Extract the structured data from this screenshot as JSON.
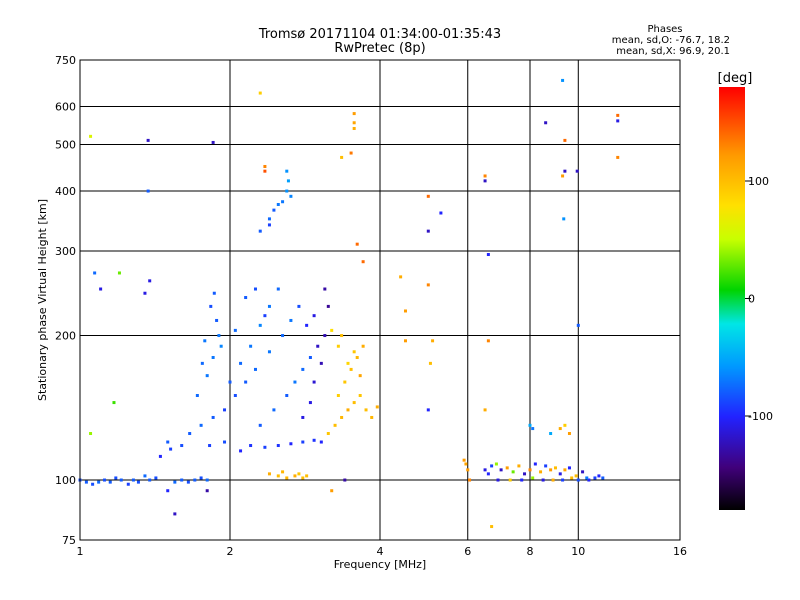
{
  "chart_data": {
    "type": "scatter",
    "title": "Tromsø 20171104 01:34:00-01:35:43",
    "subtitle": "RwPretec (8p)",
    "xlabel": "Frequency [MHz]",
    "ylabel": "Stationary phase Virtual Height [km]",
    "x_scale": "log",
    "y_scale": "log",
    "xlim": [
      1,
      16
    ],
    "ylim": [
      75,
      750
    ],
    "x_ticks": [
      1,
      2,
      4,
      6,
      8,
      10,
      16
    ],
    "y_ticks": [
      75,
      100,
      200,
      300,
      400,
      500,
      600,
      750
    ],
    "grid": true,
    "legend": {
      "title": "Phases",
      "lines": [
        "mean, sd,O: -76.7, 18.2",
        "mean, sd,X:  96.9, 20.1"
      ]
    },
    "colorbar": {
      "label": "[deg]",
      "ticks": [
        100,
        0,
        -100
      ],
      "range": [
        -180,
        180
      ],
      "colors": [
        "#000000",
        "#40007a",
        "#2222ff",
        "#0099ff",
        "#00e6e6",
        "#00d400",
        "#c8ff00",
        "#ffe000",
        "#ff9900",
        "#ff0000"
      ]
    },
    "points": [
      [
        1.0,
        100,
        -85
      ],
      [
        1.03,
        99,
        -80
      ],
      [
        1.06,
        98,
        -85
      ],
      [
        1.09,
        99,
        -75
      ],
      [
        1.12,
        100,
        -85
      ],
      [
        1.15,
        99,
        -80
      ],
      [
        1.18,
        101,
        -85
      ],
      [
        1.21,
        100,
        -80
      ],
      [
        1.25,
        98,
        -90
      ],
      [
        1.28,
        100,
        -80
      ],
      [
        1.31,
        99,
        -85
      ],
      [
        1.35,
        102,
        -75
      ],
      [
        1.38,
        100,
        -80
      ],
      [
        1.42,
        101,
        -85
      ],
      [
        1.55,
        99,
        -75
      ],
      [
        1.6,
        100,
        -80
      ],
      [
        1.65,
        99,
        -85
      ],
      [
        1.7,
        100,
        -80
      ],
      [
        1.75,
        101,
        -85
      ],
      [
        1.8,
        100,
        -75
      ],
      [
        1.05,
        520,
        60
      ],
      [
        1.37,
        510,
        -120
      ],
      [
        1.85,
        505,
        -120
      ],
      [
        1.37,
        400,
        -80
      ],
      [
        1.07,
        270,
        -75
      ],
      [
        1.2,
        270,
        30
      ],
      [
        1.1,
        250,
        -110
      ],
      [
        1.35,
        245,
        -110
      ],
      [
        1.38,
        260,
        -110
      ],
      [
        1.17,
        145,
        20
      ],
      [
        1.05,
        125,
        40
      ],
      [
        1.5,
        120,
        -80
      ],
      [
        1.5,
        95,
        -100
      ],
      [
        1.55,
        85,
        -120
      ],
      [
        1.8,
        95,
        -130
      ],
      [
        1.45,
        112,
        -100
      ],
      [
        1.52,
        116,
        -90
      ],
      [
        1.6,
        118,
        -85
      ],
      [
        1.66,
        125,
        -80
      ],
      [
        1.75,
        130,
        -75
      ],
      [
        1.85,
        135,
        -80
      ],
      [
        1.95,
        140,
        -90
      ],
      [
        2.05,
        150,
        -85
      ],
      [
        2.15,
        160,
        -80
      ],
      [
        2.25,
        170,
        -75
      ],
      [
        1.72,
        150,
        -75
      ],
      [
        1.8,
        165,
        -70
      ],
      [
        1.85,
        180,
        -70
      ],
      [
        1.9,
        200,
        -70
      ],
      [
        1.88,
        215,
        -80
      ],
      [
        1.83,
        230,
        -85
      ],
      [
        1.86,
        245,
        -80
      ],
      [
        1.78,
        195,
        -70
      ],
      [
        1.76,
        175,
        -75
      ],
      [
        1.92,
        190,
        -65
      ],
      [
        2.0,
        160,
        -80
      ],
      [
        2.1,
        175,
        -75
      ],
      [
        2.2,
        190,
        -70
      ],
      [
        2.3,
        210,
        -65
      ],
      [
        2.4,
        230,
        -70
      ],
      [
        2.5,
        250,
        -75
      ],
      [
        2.15,
        240,
        -80
      ],
      [
        2.25,
        250,
        -85
      ],
      [
        2.05,
        205,
        -75
      ],
      [
        2.35,
        220,
        -90
      ],
      [
        1.82,
        118,
        -90
      ],
      [
        1.95,
        120,
        -85
      ],
      [
        2.1,
        115,
        -100
      ],
      [
        2.2,
        118,
        -95
      ],
      [
        2.35,
        117,
        -90
      ],
      [
        2.5,
        118,
        -95
      ],
      [
        2.65,
        119,
        -100
      ],
      [
        2.8,
        120,
        -90
      ],
      [
        2.95,
        121,
        -95
      ],
      [
        3.05,
        120,
        -100
      ],
      [
        2.3,
        130,
        -80
      ],
      [
        2.45,
        140,
        -75
      ],
      [
        2.6,
        150,
        -80
      ],
      [
        2.7,
        160,
        -70
      ],
      [
        2.8,
        170,
        -75
      ],
      [
        2.9,
        180,
        -80
      ],
      [
        2.4,
        185,
        -70
      ],
      [
        2.55,
        200,
        -75
      ],
      [
        2.65,
        215,
        -70
      ],
      [
        2.75,
        230,
        -85
      ],
      [
        2.85,
        210,
        -100
      ],
      [
        2.95,
        220,
        -110
      ],
      [
        3.0,
        190,
        -120
      ],
      [
        3.05,
        175,
        -125
      ],
      [
        2.95,
        160,
        -115
      ],
      [
        2.9,
        145,
        -110
      ],
      [
        2.8,
        135,
        -110
      ],
      [
        3.1,
        200,
        -125
      ],
      [
        3.15,
        230,
        -135
      ],
      [
        3.1,
        250,
        -130
      ],
      [
        2.3,
        330,
        -80
      ],
      [
        2.4,
        350,
        -75
      ],
      [
        2.45,
        365,
        -80
      ],
      [
        2.55,
        380,
        -70
      ],
      [
        2.6,
        400,
        -60
      ],
      [
        2.62,
        420,
        -55
      ],
      [
        2.6,
        440,
        -60
      ],
      [
        2.65,
        390,
        -65
      ],
      [
        2.5,
        375,
        -70
      ],
      [
        2.4,
        340,
        -90
      ],
      [
        2.35,
        450,
        130
      ],
      [
        2.35,
        440,
        150
      ],
      [
        2.3,
        640,
        90
      ],
      [
        3.55,
        555,
        115
      ],
      [
        3.55,
        580,
        120
      ],
      [
        3.55,
        540,
        110
      ],
      [
        3.5,
        480,
        135
      ],
      [
        3.6,
        310,
        140
      ],
      [
        3.7,
        285,
        140
      ],
      [
        3.35,
        470,
        100
      ],
      [
        2.4,
        103,
        110
      ],
      [
        2.5,
        102,
        100
      ],
      [
        2.6,
        101,
        105
      ],
      [
        2.7,
        102,
        110
      ],
      [
        2.8,
        101,
        100
      ],
      [
        2.55,
        104,
        105
      ],
      [
        2.75,
        103,
        95
      ],
      [
        2.85,
        102,
        100
      ],
      [
        3.4,
        100,
        -130
      ],
      [
        3.2,
        95,
        120
      ],
      [
        3.15,
        125,
        95
      ],
      [
        3.25,
        130,
        100
      ],
      [
        3.35,
        135,
        105
      ],
      [
        3.45,
        140,
        110
      ],
      [
        3.55,
        145,
        100
      ],
      [
        3.65,
        150,
        95
      ],
      [
        3.75,
        140,
        100
      ],
      [
        3.85,
        135,
        105
      ],
      [
        3.95,
        142,
        110
      ],
      [
        3.3,
        150,
        90
      ],
      [
        3.4,
        160,
        95
      ],
      [
        3.5,
        170,
        100
      ],
      [
        3.6,
        180,
        105
      ],
      [
        3.7,
        190,
        110
      ],
      [
        3.45,
        175,
        85
      ],
      [
        3.55,
        185,
        95
      ],
      [
        3.3,
        190,
        90
      ],
      [
        3.2,
        205,
        80
      ],
      [
        3.35,
        200,
        100
      ],
      [
        3.65,
        165,
        115
      ],
      [
        4.4,
        265,
        110
      ],
      [
        4.5,
        225,
        120
      ],
      [
        5.0,
        390,
        140
      ],
      [
        5.0,
        330,
        -120
      ],
      [
        5.3,
        360,
        -100
      ],
      [
        5.0,
        255,
        130
      ],
      [
        5.1,
        195,
        110
      ],
      [
        4.5,
        195,
        120
      ],
      [
        5.05,
        175,
        100
      ],
      [
        5.0,
        140,
        -100
      ],
      [
        6.5,
        420,
        -120
      ],
      [
        6.5,
        430,
        130
      ],
      [
        6.6,
        295,
        -100
      ],
      [
        6.6,
        195,
        130
      ],
      [
        6.5,
        140,
        110
      ],
      [
        6.7,
        80,
        100
      ],
      [
        5.9,
        110,
        120
      ],
      [
        5.95,
        108,
        115
      ],
      [
        6.0,
        105,
        120
      ],
      [
        6.05,
        100,
        130
      ],
      [
        6.5,
        105,
        -110
      ],
      [
        6.6,
        103,
        -100
      ],
      [
        6.7,
        107,
        -90
      ],
      [
        6.85,
        108,
        40
      ],
      [
        7.0,
        105,
        -120
      ],
      [
        7.2,
        106,
        120
      ],
      [
        7.4,
        104,
        30
      ],
      [
        7.6,
        107,
        110
      ],
      [
        7.8,
        103,
        -120
      ],
      [
        8.0,
        105,
        130
      ],
      [
        8.2,
        108,
        -100
      ],
      [
        8.4,
        104,
        110
      ],
      [
        8.6,
        107,
        -90
      ],
      [
        8.8,
        105,
        120
      ],
      [
        9.0,
        106,
        100
      ],
      [
        9.2,
        103,
        -110
      ],
      [
        9.4,
        105,
        115
      ],
      [
        9.6,
        106,
        -100
      ],
      [
        9.9,
        102,
        100
      ],
      [
        10.2,
        104,
        -120
      ],
      [
        10.5,
        100,
        -100
      ],
      [
        10.8,
        101,
        -90
      ],
      [
        11.0,
        102,
        -100
      ],
      [
        11.2,
        101,
        -80
      ],
      [
        6.9,
        100,
        -110
      ],
      [
        7.3,
        100,
        90
      ],
      [
        7.7,
        100,
        -100
      ],
      [
        8.1,
        101,
        40
      ],
      [
        8.5,
        100,
        -110
      ],
      [
        8.9,
        100,
        110
      ],
      [
        9.3,
        100,
        -90
      ],
      [
        9.7,
        101,
        100
      ],
      [
        10.0,
        100,
        -85
      ],
      [
        10.4,
        101,
        -70
      ],
      [
        8.0,
        130,
        -50
      ],
      [
        8.1,
        128,
        -70
      ],
      [
        9.2,
        128,
        110
      ],
      [
        9.4,
        130,
        90
      ],
      [
        9.6,
        125,
        120
      ],
      [
        8.8,
        125,
        -50
      ],
      [
        8.6,
        555,
        -120
      ],
      [
        9.3,
        680,
        -60
      ],
      [
        9.4,
        510,
        140
      ],
      [
        9.4,
        440,
        -120
      ],
      [
        9.3,
        430,
        120
      ],
      [
        9.35,
        350,
        -60
      ],
      [
        9.95,
        440,
        -120
      ],
      [
        10.0,
        210,
        -80
      ],
      [
        12.0,
        560,
        -110
      ],
      [
        12.0,
        575,
        140
      ],
      [
        12.0,
        470,
        130
      ]
    ]
  }
}
